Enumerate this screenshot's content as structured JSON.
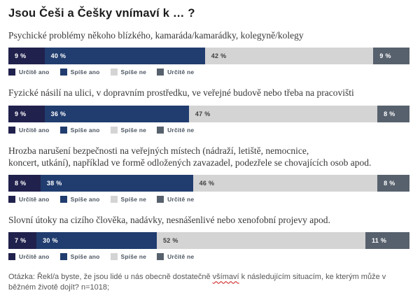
{
  "title": "Jsou Češi a Češky vnímaví k … ?",
  "legend": {
    "items": [
      {
        "label": "Určitě ano",
        "color": "#21214d",
        "text_color": "#ffffff"
      },
      {
        "label": "Spíše ano",
        "color": "#213d6f",
        "text_color": "#ffffff"
      },
      {
        "label": "Spíše ne",
        "color": "#d4d4d4",
        "text_color": "#3f3f3f"
      },
      {
        "label": "Určitě ne",
        "color": "#57616d",
        "text_color": "#ffffff"
      }
    ]
  },
  "chart_data": [
    {
      "type": "bar",
      "orientation": "horizontal",
      "stacked": true,
      "unit": "%",
      "question": "Psychické problémy někoho blízkého, kamaráda/kamarádky, kolegyně/kolegy",
      "categories": [
        "Určitě ano",
        "Spíše ano",
        "Spíše ne",
        "Určitě ne"
      ],
      "values": [
        9,
        40,
        42,
        9
      ],
      "value_labels": [
        "9 %",
        "40 %",
        "42 %",
        "9 %"
      ]
    },
    {
      "type": "bar",
      "orientation": "horizontal",
      "stacked": true,
      "unit": "%",
      "question": "Fyzické násilí na ulici, v dopravním prostředku, ve veřejné budově nebo třeba na pracovišti",
      "categories": [
        "Určitě ano",
        "Spíše ano",
        "Spíše ne",
        "Určitě ne"
      ],
      "values": [
        9,
        36,
        47,
        8
      ],
      "value_labels": [
        "9 %",
        "36 %",
        "47 %",
        "8 %"
      ]
    },
    {
      "type": "bar",
      "orientation": "horizontal",
      "stacked": true,
      "unit": "%",
      "question": "Hrozba narušení bezpečnosti na veřejných místech (nádraží, letiště, nemocnice,\nkoncert, utkání), například ve formě odložených zavazadel, podezřele se chovajících osob apod.",
      "categories": [
        "Určitě ano",
        "Spíše ano",
        "Spíše ne",
        "Určitě ne"
      ],
      "values": [
        8,
        38,
        46,
        8
      ],
      "value_labels": [
        "8 %",
        "38 %",
        "46 %",
        "8 %"
      ]
    },
    {
      "type": "bar",
      "orientation": "horizontal",
      "stacked": true,
      "unit": "%",
      "question": "Slovní útoky na cizího člověka, nadávky, nesnášenlivé nebo xenofobní projevy apod.",
      "categories": [
        "Určitě ano",
        "Spíše ano",
        "Spíše ne",
        "Určitě ne"
      ],
      "values": [
        7,
        30,
        52,
        11
      ],
      "value_labels": [
        "7 %",
        "30 %",
        "52 %",
        "11 %"
      ]
    }
  ],
  "footer": {
    "prefix": "Otázka: Řekl/a byste, že jsou lidé u nás obecně dostatečně ",
    "word": "všímaví",
    "suffix": " k následujícím situacím, ke kterým může v běžném životě dojít? n=1018;"
  }
}
